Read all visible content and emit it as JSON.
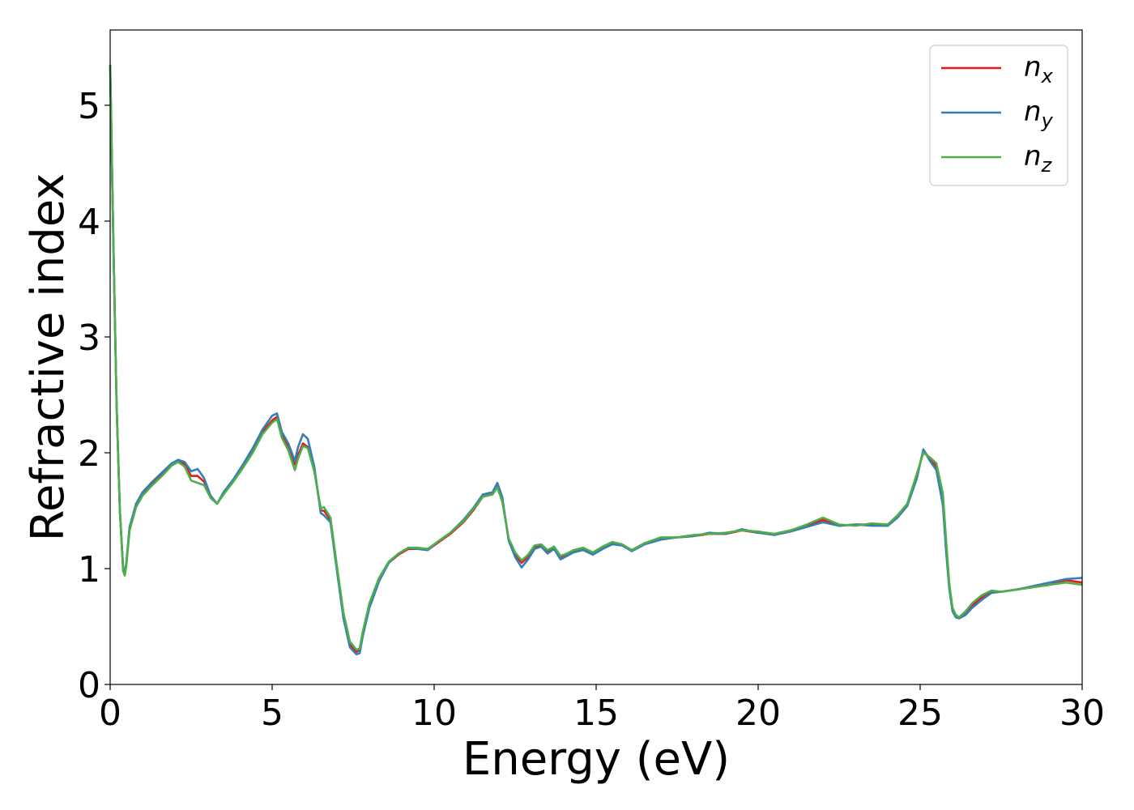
{
  "chart_data": {
    "type": "line",
    "xlabel": "Energy (eV)",
    "ylabel": "Refractive index",
    "xlim": [
      0,
      30
    ],
    "ylim": [
      0,
      5.65
    ],
    "xticks": [
      "0",
      "5",
      "10",
      "15",
      "20",
      "25",
      "30"
    ],
    "yticks": [
      "0",
      "1",
      "2",
      "3",
      "4",
      "5"
    ],
    "grid": false,
    "legend_position": "top-right",
    "colors": {
      "nx": "#e41a1c",
      "ny": "#377eb8",
      "nz": "#4daf4a"
    },
    "series": [
      {
        "key": "nx",
        "name": "n",
        "subscript": "x",
        "color": "#e41a1c",
        "x": [
          0,
          0.1,
          0.2,
          0.3,
          0.4,
          0.45,
          0.5,
          0.6,
          0.8,
          1.0,
          1.3,
          1.6,
          1.9,
          2.1,
          2.3,
          2.5,
          2.7,
          2.9,
          3.1,
          3.3,
          3.5,
          3.8,
          4.1,
          4.4,
          4.7,
          5.0,
          5.15,
          5.3,
          5.5,
          5.7,
          5.8,
          5.95,
          6.1,
          6.3,
          6.5,
          6.6,
          6.8,
          7.0,
          7.2,
          7.4,
          7.6,
          7.7,
          7.8,
          8.0,
          8.3,
          8.6,
          8.9,
          9.2,
          9.5,
          9.8,
          10.1,
          10.5,
          10.9,
          11.2,
          11.5,
          11.8,
          11.95,
          12.1,
          12.3,
          12.5,
          12.7,
          12.9,
          13.1,
          13.3,
          13.5,
          13.7,
          13.9,
          14.1,
          14.3,
          14.6,
          14.9,
          15.2,
          15.5,
          15.8,
          16.1,
          16.5,
          17.0,
          17.5,
          18.0,
          18.5,
          19.0,
          19.5,
          20.0,
          20.5,
          21.0,
          21.5,
          22.0,
          22.5,
          23.0,
          23.5,
          24.0,
          24.3,
          24.6,
          24.9,
          25.1,
          25.3,
          25.5,
          25.7,
          25.8,
          25.9,
          26.0,
          26.1,
          26.2,
          26.4,
          26.6,
          26.9,
          27.2,
          27.5,
          28.0,
          28.5,
          29.0,
          29.5,
          30.0
        ],
        "y": [
          5.35,
          3.8,
          2.4,
          1.5,
          1.0,
          0.96,
          1.05,
          1.35,
          1.55,
          1.65,
          1.74,
          1.82,
          1.9,
          1.93,
          1.9,
          1.8,
          1.8,
          1.75,
          1.62,
          1.56,
          1.65,
          1.76,
          1.88,
          2.02,
          2.18,
          2.28,
          2.31,
          2.15,
          2.05,
          1.9,
          1.98,
          2.08,
          2.05,
          1.85,
          1.5,
          1.5,
          1.42,
          1.0,
          0.6,
          0.35,
          0.28,
          0.3,
          0.45,
          0.68,
          0.9,
          1.05,
          1.12,
          1.17,
          1.17,
          1.16,
          1.22,
          1.3,
          1.4,
          1.5,
          1.62,
          1.65,
          1.72,
          1.6,
          1.25,
          1.12,
          1.05,
          1.1,
          1.18,
          1.2,
          1.15,
          1.18,
          1.1,
          1.12,
          1.15,
          1.17,
          1.13,
          1.18,
          1.22,
          1.2,
          1.16,
          1.22,
          1.26,
          1.27,
          1.28,
          1.3,
          1.3,
          1.33,
          1.31,
          1.3,
          1.33,
          1.37,
          1.42,
          1.37,
          1.38,
          1.38,
          1.38,
          1.45,
          1.55,
          1.8,
          2.02,
          1.95,
          1.88,
          1.6,
          1.2,
          0.85,
          0.65,
          0.6,
          0.58,
          0.62,
          0.68,
          0.75,
          0.8,
          0.8,
          0.82,
          0.84,
          0.86,
          0.9,
          0.88
        ]
      },
      {
        "key": "ny",
        "name": "n",
        "subscript": "y",
        "color": "#377eb8",
        "x": [
          0,
          0.1,
          0.2,
          0.3,
          0.4,
          0.45,
          0.5,
          0.6,
          0.8,
          1.0,
          1.3,
          1.6,
          1.9,
          2.1,
          2.3,
          2.5,
          2.7,
          2.9,
          3.1,
          3.3,
          3.5,
          3.8,
          4.1,
          4.4,
          4.7,
          5.0,
          5.15,
          5.3,
          5.5,
          5.7,
          5.8,
          5.95,
          6.1,
          6.3,
          6.5,
          6.6,
          6.8,
          7.0,
          7.2,
          7.4,
          7.6,
          7.7,
          7.8,
          8.0,
          8.3,
          8.6,
          8.9,
          9.2,
          9.5,
          9.8,
          10.1,
          10.5,
          10.9,
          11.2,
          11.5,
          11.8,
          11.95,
          12.1,
          12.3,
          12.5,
          12.7,
          12.9,
          13.1,
          13.3,
          13.5,
          13.7,
          13.9,
          14.1,
          14.3,
          14.6,
          14.9,
          15.2,
          15.5,
          15.8,
          16.1,
          16.5,
          17.0,
          17.5,
          18.0,
          18.5,
          19.0,
          19.5,
          20.0,
          20.5,
          21.0,
          21.5,
          22.0,
          22.5,
          23.0,
          23.5,
          24.0,
          24.3,
          24.6,
          24.9,
          25.1,
          25.3,
          25.5,
          25.7,
          25.8,
          25.9,
          26.0,
          26.1,
          26.2,
          26.4,
          26.6,
          26.9,
          27.2,
          27.5,
          28.0,
          28.5,
          29.0,
          29.5,
          30.0
        ],
        "y": [
          5.35,
          3.8,
          2.4,
          1.5,
          1.0,
          0.96,
          1.05,
          1.36,
          1.56,
          1.66,
          1.75,
          1.83,
          1.91,
          1.94,
          1.92,
          1.84,
          1.86,
          1.78,
          1.63,
          1.56,
          1.66,
          1.77,
          1.9,
          2.04,
          2.2,
          2.32,
          2.34,
          2.18,
          2.08,
          1.93,
          2.05,
          2.16,
          2.12,
          1.88,
          1.48,
          1.46,
          1.4,
          0.98,
          0.57,
          0.32,
          0.26,
          0.27,
          0.42,
          0.66,
          0.89,
          1.05,
          1.13,
          1.18,
          1.17,
          1.16,
          1.23,
          1.31,
          1.42,
          1.52,
          1.64,
          1.66,
          1.74,
          1.62,
          1.24,
          1.1,
          1.01,
          1.08,
          1.17,
          1.19,
          1.13,
          1.17,
          1.08,
          1.11,
          1.14,
          1.16,
          1.12,
          1.17,
          1.21,
          1.2,
          1.15,
          1.21,
          1.25,
          1.27,
          1.28,
          1.31,
          1.3,
          1.34,
          1.31,
          1.29,
          1.32,
          1.36,
          1.4,
          1.37,
          1.38,
          1.37,
          1.37,
          1.44,
          1.54,
          1.78,
          2.03,
          1.93,
          1.85,
          1.55,
          1.15,
          0.82,
          0.63,
          0.58,
          0.57,
          0.6,
          0.66,
          0.73,
          0.79,
          0.8,
          0.82,
          0.85,
          0.88,
          0.91,
          0.92
        ]
      },
      {
        "key": "nz",
        "name": "n",
        "subscript": "z",
        "color": "#4daf4a",
        "x": [
          0,
          0.1,
          0.2,
          0.3,
          0.4,
          0.45,
          0.5,
          0.6,
          0.8,
          1.0,
          1.3,
          1.6,
          1.9,
          2.1,
          2.3,
          2.5,
          2.7,
          2.9,
          3.1,
          3.3,
          3.5,
          3.8,
          4.1,
          4.4,
          4.7,
          5.0,
          5.15,
          5.3,
          5.5,
          5.7,
          5.8,
          5.95,
          6.1,
          6.3,
          6.5,
          6.6,
          6.8,
          7.0,
          7.2,
          7.4,
          7.6,
          7.7,
          7.8,
          8.0,
          8.3,
          8.6,
          8.9,
          9.2,
          9.5,
          9.8,
          10.1,
          10.5,
          10.9,
          11.2,
          11.5,
          11.8,
          11.95,
          12.1,
          12.3,
          12.5,
          12.7,
          12.9,
          13.1,
          13.3,
          13.5,
          13.7,
          13.9,
          14.1,
          14.3,
          14.6,
          14.9,
          15.2,
          15.5,
          15.8,
          16.1,
          16.5,
          17.0,
          17.5,
          18.0,
          18.5,
          19.0,
          19.5,
          20.0,
          20.5,
          21.0,
          21.5,
          22.0,
          22.5,
          23.0,
          23.5,
          24.0,
          24.3,
          24.6,
          24.9,
          25.1,
          25.3,
          25.5,
          25.7,
          25.8,
          25.9,
          26.0,
          26.1,
          26.2,
          26.4,
          26.6,
          26.9,
          27.2,
          27.5,
          28.0,
          28.5,
          29.0,
          29.5,
          30.0
        ],
        "y": [
          5.35,
          3.8,
          2.4,
          1.5,
          0.98,
          0.94,
          1.03,
          1.33,
          1.53,
          1.63,
          1.72,
          1.8,
          1.89,
          1.92,
          1.88,
          1.76,
          1.74,
          1.72,
          1.61,
          1.56,
          1.64,
          1.75,
          1.87,
          2.0,
          2.16,
          2.26,
          2.29,
          2.13,
          2.02,
          1.85,
          1.95,
          2.06,
          2.04,
          1.84,
          1.52,
          1.53,
          1.44,
          1.02,
          0.62,
          0.37,
          0.3,
          0.31,
          0.46,
          0.7,
          0.92,
          1.06,
          1.13,
          1.18,
          1.18,
          1.17,
          1.23,
          1.31,
          1.41,
          1.51,
          1.62,
          1.64,
          1.7,
          1.58,
          1.26,
          1.14,
          1.07,
          1.12,
          1.2,
          1.21,
          1.16,
          1.19,
          1.11,
          1.13,
          1.16,
          1.18,
          1.14,
          1.19,
          1.23,
          1.21,
          1.16,
          1.22,
          1.27,
          1.27,
          1.29,
          1.3,
          1.31,
          1.33,
          1.32,
          1.3,
          1.33,
          1.38,
          1.44,
          1.38,
          1.37,
          1.39,
          1.38,
          1.46,
          1.56,
          1.82,
          2.0,
          1.96,
          1.91,
          1.65,
          1.25,
          0.87,
          0.66,
          0.6,
          0.58,
          0.63,
          0.7,
          0.77,
          0.81,
          0.8,
          0.82,
          0.84,
          0.86,
          0.88,
          0.86
        ]
      }
    ]
  }
}
